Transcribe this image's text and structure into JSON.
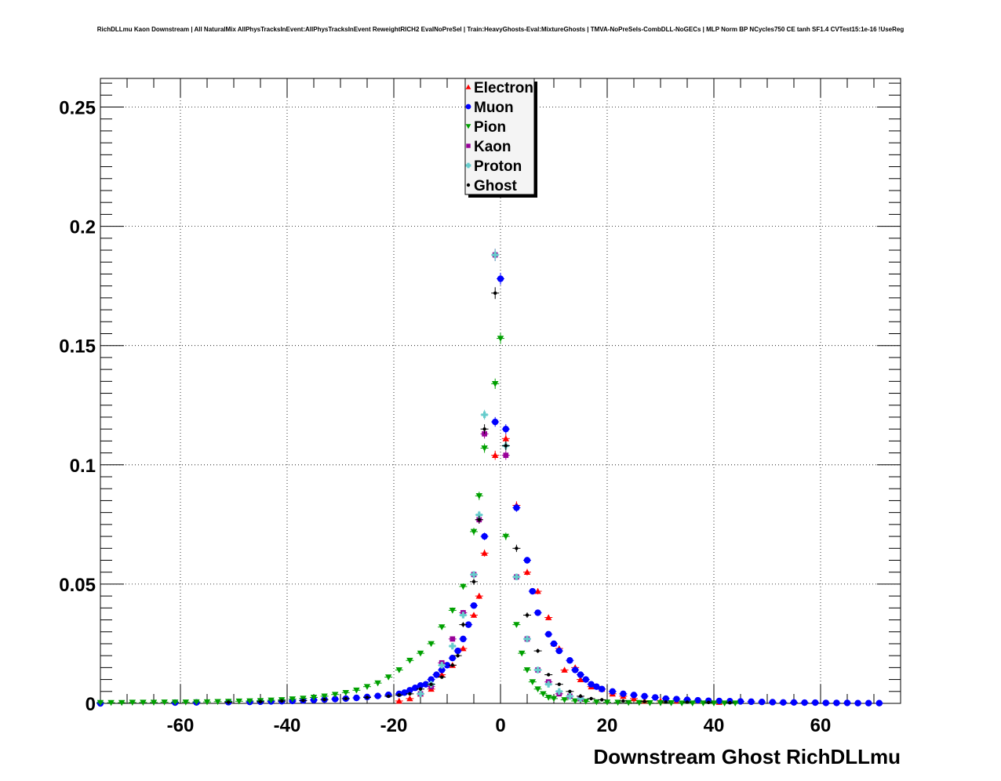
{
  "chart_data": {
    "type": "scatter",
    "title": "RichDLLmu Kaon Downstream | All NaturalMix AllPhysTracksInEvent:AllPhysTracksInEvent ReweightRICH2 EvalNoPreSel | Train:HeavyGhosts-Eval:MixtureGhosts | TMVA-NoPreSels-CombDLL-NoGECs | MLP Norm BP NCycles750 CE tanh SF1.4 CVTest15:1e-16 !UseReg",
    "xlabel": "Downstream Ghost RichDLLmu",
    "ylabel": "",
    "xlim": [
      -75,
      75
    ],
    "ylim": [
      0,
      0.262
    ],
    "x_ticks": [
      -60,
      -40,
      -20,
      0,
      20,
      40,
      60
    ],
    "y_ticks": [
      0,
      0.05,
      0.1,
      0.15,
      0.2,
      0.25
    ],
    "x_tick_labels": [
      "-60",
      "-40",
      "-20",
      "0",
      "20",
      "40",
      "60"
    ],
    "y_tick_labels": [
      "0",
      "0.05",
      "0.1",
      "0.15",
      "0.2",
      "0.25"
    ],
    "grid": true,
    "legend_position": "top-center",
    "series": [
      {
        "name": "Electron",
        "color": "#ff0000",
        "marker": "triangle-up",
        "points": [
          [
            -19,
            0.001
          ],
          [
            -17,
            0.002
          ],
          [
            -15,
            0.004
          ],
          [
            -13,
            0.006
          ],
          [
            -11,
            0.012
          ],
          [
            -9,
            0.016
          ],
          [
            -7,
            0.023
          ],
          [
            -5,
            0.037
          ],
          [
            -4,
            0.045
          ],
          [
            -3,
            0.063
          ],
          [
            -1,
            0.104
          ],
          [
            1,
            0.111
          ],
          [
            3,
            0.083
          ],
          [
            5,
            0.055
          ],
          [
            7,
            0.047
          ],
          [
            9,
            0.036
          ],
          [
            10,
            0.025
          ],
          [
            11,
            0.023
          ],
          [
            12,
            0.014
          ],
          [
            14,
            0.015
          ],
          [
            15,
            0.01
          ],
          [
            17,
            0.007
          ],
          [
            19,
            0.006
          ],
          [
            21,
            0.004
          ],
          [
            23,
            0.003
          ],
          [
            25,
            0.002
          ],
          [
            27,
            0.001
          ],
          [
            30,
            0.001
          ],
          [
            33,
            0.001
          ],
          [
            37,
            0.001
          ],
          [
            41,
            0.0005
          ]
        ]
      },
      {
        "name": "Muon",
        "color": "#0000ff",
        "marker": "circle",
        "points": [
          [
            -75,
            0
          ],
          [
            -61,
            0.0003
          ],
          [
            -57,
            0.0004
          ],
          [
            -51,
            0.0005
          ],
          [
            -47,
            0.0006
          ],
          [
            -45,
            0.0007
          ],
          [
            -43,
            0.0008
          ],
          [
            -41,
            0.0009
          ],
          [
            -39,
            0.001
          ],
          [
            -37,
            0.0012
          ],
          [
            -35,
            0.0014
          ],
          [
            -33,
            0.0016
          ],
          [
            -31,
            0.0018
          ],
          [
            -29,
            0.002
          ],
          [
            -27,
            0.0023
          ],
          [
            -25,
            0.0027
          ],
          [
            -23,
            0.0031
          ],
          [
            -21,
            0.0036
          ],
          [
            -19,
            0.004
          ],
          [
            -18,
            0.0045
          ],
          [
            -17,
            0.0055
          ],
          [
            -16,
            0.0065
          ],
          [
            -15,
            0.0075
          ],
          [
            -14,
            0.008
          ],
          [
            -13,
            0.01
          ],
          [
            -12,
            0.012
          ],
          [
            -11,
            0.014
          ],
          [
            -10,
            0.016
          ],
          [
            -9,
            0.019
          ],
          [
            -8,
            0.022
          ],
          [
            -7,
            0.027
          ],
          [
            -6,
            0.033
          ],
          [
            -5,
            0.041
          ],
          [
            -3,
            0.07
          ],
          [
            -1,
            0.118
          ],
          [
            0,
            0.178
          ],
          [
            1,
            0.115
          ],
          [
            3,
            0.082
          ],
          [
            5,
            0.06
          ],
          [
            6,
            0.047
          ],
          [
            7,
            0.038
          ],
          [
            9,
            0.029
          ],
          [
            10,
            0.025
          ],
          [
            11,
            0.022
          ],
          [
            13,
            0.018
          ],
          [
            14,
            0.014
          ],
          [
            15,
            0.012
          ],
          [
            16,
            0.01
          ],
          [
            17,
            0.008
          ],
          [
            18,
            0.007
          ],
          [
            19,
            0.006
          ],
          [
            21,
            0.005
          ],
          [
            23,
            0.004
          ],
          [
            25,
            0.0035
          ],
          [
            27,
            0.003
          ],
          [
            29,
            0.0025
          ],
          [
            31,
            0.002
          ],
          [
            33,
            0.0018
          ],
          [
            35,
            0.0015
          ],
          [
            37,
            0.0013
          ],
          [
            39,
            0.0011
          ],
          [
            41,
            0.001
          ],
          [
            43,
            0.0009
          ],
          [
            45,
            0.0008
          ],
          [
            47,
            0.0007
          ],
          [
            49,
            0.0006
          ],
          [
            51,
            0.0005
          ],
          [
            53,
            0.0004
          ],
          [
            55,
            0.0004
          ],
          [
            57,
            0.0003
          ],
          [
            59,
            0.0003
          ],
          [
            61,
            0.0002
          ],
          [
            63,
            0.0002
          ],
          [
            65,
            0.0002
          ],
          [
            67,
            0.0001
          ],
          [
            69,
            0.0001
          ],
          [
            71,
            0.0001
          ]
        ]
      },
      {
        "name": "Pion",
        "color": "#00a000",
        "marker": "triangle-down",
        "points": [
          [
            -75,
            0.0003
          ],
          [
            -73,
            0.0003
          ],
          [
            -71,
            0.0003
          ],
          [
            -69,
            0.0004
          ],
          [
            -67,
            0.0004
          ],
          [
            -65,
            0.0004
          ],
          [
            -63,
            0.0005
          ],
          [
            -61,
            0.0005
          ],
          [
            -59,
            0.0005
          ],
          [
            -57,
            0.0006
          ],
          [
            -55,
            0.0006
          ],
          [
            -53,
            0.0007
          ],
          [
            -51,
            0.0008
          ],
          [
            -49,
            0.0009
          ],
          [
            -47,
            0.001
          ],
          [
            -45,
            0.0011
          ],
          [
            -43,
            0.0013
          ],
          [
            -41,
            0.0015
          ],
          [
            -39,
            0.0018
          ],
          [
            -37,
            0.0021
          ],
          [
            -35,
            0.0025
          ],
          [
            -33,
            0.003
          ],
          [
            -31,
            0.0037
          ],
          [
            -29,
            0.0045
          ],
          [
            -27,
            0.0055
          ],
          [
            -25,
            0.007
          ],
          [
            -23,
            0.0085
          ],
          [
            -21,
            0.011
          ],
          [
            -19,
            0.014
          ],
          [
            -17,
            0.018
          ],
          [
            -15,
            0.021
          ],
          [
            -13,
            0.025
          ],
          [
            -11,
            0.032
          ],
          [
            -9,
            0.039
          ],
          [
            -7,
            0.049
          ],
          [
            -5,
            0.072
          ],
          [
            -4,
            0.087
          ],
          [
            -3,
            0.107
          ],
          [
            -1,
            0.134
          ],
          [
            0,
            0.153
          ],
          [
            1,
            0.07
          ],
          [
            3,
            0.033
          ],
          [
            4,
            0.021
          ],
          [
            5,
            0.014
          ],
          [
            6,
            0.009
          ],
          [
            7,
            0.006
          ],
          [
            8,
            0.004
          ],
          [
            9,
            0.0025
          ],
          [
            10,
            0.002
          ],
          [
            12,
            0.0015
          ],
          [
            14,
            0.001
          ],
          [
            16,
            0.0008
          ],
          [
            18,
            0.0006
          ],
          [
            20,
            0.0005
          ],
          [
            22,
            0.0004
          ],
          [
            24,
            0.0003
          ],
          [
            26,
            0.0003
          ],
          [
            28,
            0.0002
          ],
          [
            30,
            0.0002
          ],
          [
            32,
            0.0002
          ],
          [
            34,
            0.0001
          ],
          [
            36,
            0.0001
          ],
          [
            38,
            0.0001
          ],
          [
            40,
            0.0001
          ],
          [
            42,
            0.0001
          ],
          [
            44,
            0.0001
          ]
        ]
      },
      {
        "name": "Kaon",
        "color": "#990099",
        "marker": "square",
        "points": [
          [
            -15,
            0.004
          ],
          [
            -13,
            0.007
          ],
          [
            -11,
            0.017
          ],
          [
            -9,
            0.027
          ],
          [
            -7,
            0.038
          ],
          [
            -5,
            0.054
          ],
          [
            -4,
            0.077
          ],
          [
            -3,
            0.113
          ],
          [
            -1,
            0.188
          ],
          [
            1,
            0.104
          ],
          [
            3,
            0.053
          ],
          [
            5,
            0.027
          ],
          [
            7,
            0.014
          ],
          [
            9,
            0.009
          ],
          [
            11,
            0.004
          ],
          [
            13,
            0.003
          ],
          [
            15,
            0.002
          ]
        ]
      },
      {
        "name": "Proton",
        "color": "#66cccc",
        "marker": "plus",
        "points": [
          [
            -15,
            0.004
          ],
          [
            -13,
            0.008
          ],
          [
            -11,
            0.016
          ],
          [
            -9,
            0.024
          ],
          [
            -7,
            0.037
          ],
          [
            -5,
            0.054
          ],
          [
            -4,
            0.079
          ],
          [
            -3,
            0.121
          ],
          [
            -1,
            0.188
          ],
          [
            1,
            0.108
          ],
          [
            3,
            0.053
          ],
          [
            5,
            0.027
          ],
          [
            7,
            0.014
          ],
          [
            9,
            0.008
          ],
          [
            11,
            0.005
          ],
          [
            13,
            0.003
          ],
          [
            15,
            0.002
          ]
        ]
      },
      {
        "name": "Ghost",
        "color": "#000000",
        "marker": "cross",
        "points": [
          [
            -51,
            0.0005
          ],
          [
            -45,
            0.0007
          ],
          [
            -41,
            0.001
          ],
          [
            -37,
            0.0012
          ],
          [
            -33,
            0.0016
          ],
          [
            -29,
            0.002
          ],
          [
            -25,
            0.0025
          ],
          [
            -21,
            0.003
          ],
          [
            -19,
            0.0035
          ],
          [
            -17,
            0.004
          ],
          [
            -15,
            0.006
          ],
          [
            -13,
            0.008
          ],
          [
            -11,
            0.011
          ],
          [
            -9,
            0.016
          ],
          [
            -8,
            0.02
          ],
          [
            -7,
            0.033
          ],
          [
            -5,
            0.051
          ],
          [
            -4,
            0.077
          ],
          [
            -3,
            0.115
          ],
          [
            -1,
            0.172
          ],
          [
            1,
            0.108
          ],
          [
            3,
            0.065
          ],
          [
            5,
            0.037
          ],
          [
            7,
            0.022
          ],
          [
            9,
            0.012
          ],
          [
            11,
            0.008
          ],
          [
            13,
            0.005
          ],
          [
            15,
            0.003
          ],
          [
            17,
            0.002
          ],
          [
            19,
            0.0015
          ],
          [
            23,
            0.001
          ],
          [
            27,
            0.0008
          ],
          [
            31,
            0.0006
          ],
          [
            35,
            0.0005
          ],
          [
            39,
            0.0004
          ],
          [
            43,
            0.0003
          ]
        ]
      }
    ]
  }
}
